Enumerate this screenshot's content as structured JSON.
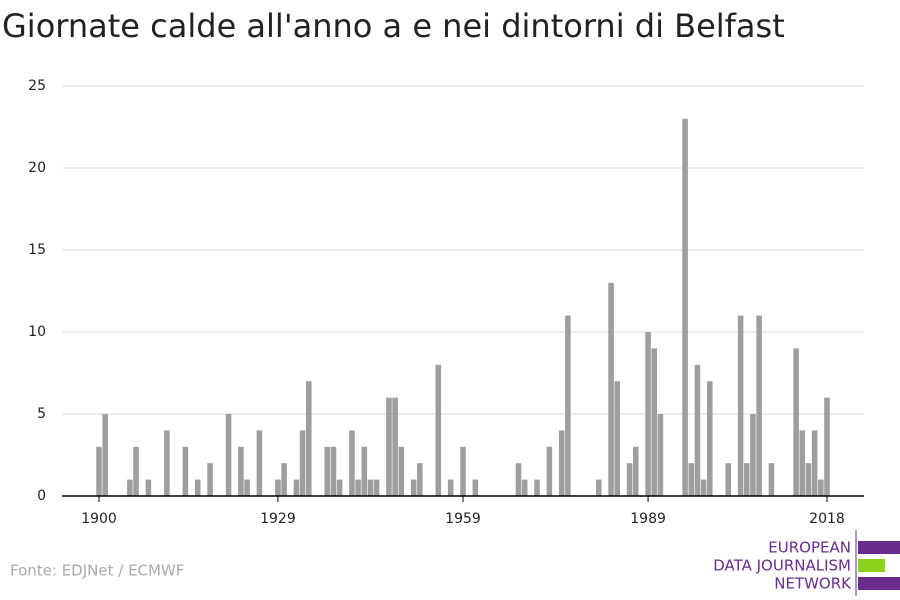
{
  "chart_data": {
    "type": "bar",
    "title": "Giornate calde all'anno a e nei dintorni di Belfast",
    "x": [
      1900,
      1901,
      1902,
      1903,
      1904,
      1905,
      1906,
      1907,
      1908,
      1909,
      1910,
      1911,
      1912,
      1913,
      1914,
      1915,
      1916,
      1917,
      1918,
      1919,
      1920,
      1921,
      1922,
      1923,
      1924,
      1925,
      1926,
      1927,
      1928,
      1929,
      1930,
      1931,
      1932,
      1933,
      1934,
      1935,
      1936,
      1937,
      1938,
      1939,
      1940,
      1941,
      1942,
      1943,
      1944,
      1945,
      1946,
      1947,
      1948,
      1949,
      1950,
      1951,
      1952,
      1953,
      1954,
      1955,
      1956,
      1957,
      1958,
      1959,
      1960,
      1961,
      1962,
      1963,
      1964,
      1965,
      1966,
      1967,
      1968,
      1969,
      1970,
      1971,
      1972,
      1973,
      1974,
      1975,
      1976,
      1977,
      1978,
      1979,
      1980,
      1981,
      1982,
      1983,
      1984,
      1985,
      1986,
      1987,
      1988,
      1989,
      1990,
      1991,
      1992,
      1993,
      1994,
      1995,
      1996,
      1997,
      1998,
      1999,
      2000,
      2001,
      2002,
      2003,
      2004,
      2005,
      2006,
      2007,
      2008,
      2009,
      2010,
      2011,
      2012,
      2013,
      2014,
      2015,
      2016,
      2017,
      2018
    ],
    "values": [
      3,
      5,
      0,
      0,
      0,
      1,
      3,
      0,
      1,
      0,
      0,
      4,
      0,
      0,
      3,
      0,
      1,
      0,
      2,
      0,
      0,
      5,
      0,
      3,
      1,
      0,
      4,
      0,
      0,
      1,
      2,
      0,
      1,
      4,
      7,
      0,
      0,
      3,
      3,
      1,
      0,
      4,
      1,
      3,
      1,
      1,
      0,
      6,
      6,
      3,
      0,
      1,
      2,
      0,
      0,
      8,
      0,
      1,
      0,
      3,
      0,
      1,
      0,
      0,
      0,
      0,
      0,
      0,
      2,
      1,
      0,
      1,
      0,
      3,
      0,
      4,
      11,
      0,
      0,
      0,
      0,
      1,
      0,
      13,
      7,
      0,
      2,
      3,
      0,
      10,
      9,
      5,
      0,
      0,
      0,
      23,
      2,
      8,
      1,
      7,
      0,
      0,
      2,
      0,
      11,
      2,
      5,
      11,
      0,
      2,
      0,
      0,
      0,
      9,
      4,
      2,
      4,
      1,
      6
    ],
    "color": "#9e9e9e",
    "xlim": [
      1894,
      2024
    ],
    "xticks": [
      1900,
      1929,
      1959,
      1989,
      2018
    ],
    "ylim": [
      0,
      25
    ],
    "yticks": [
      0,
      5,
      10,
      15,
      20,
      25
    ],
    "grid": true
  },
  "footer": {
    "source": "Fonte: EDJNet / ECMWF",
    "logo": [
      "EUROPEAN",
      "DATA JOURNALISM",
      "NETWORK"
    ]
  }
}
